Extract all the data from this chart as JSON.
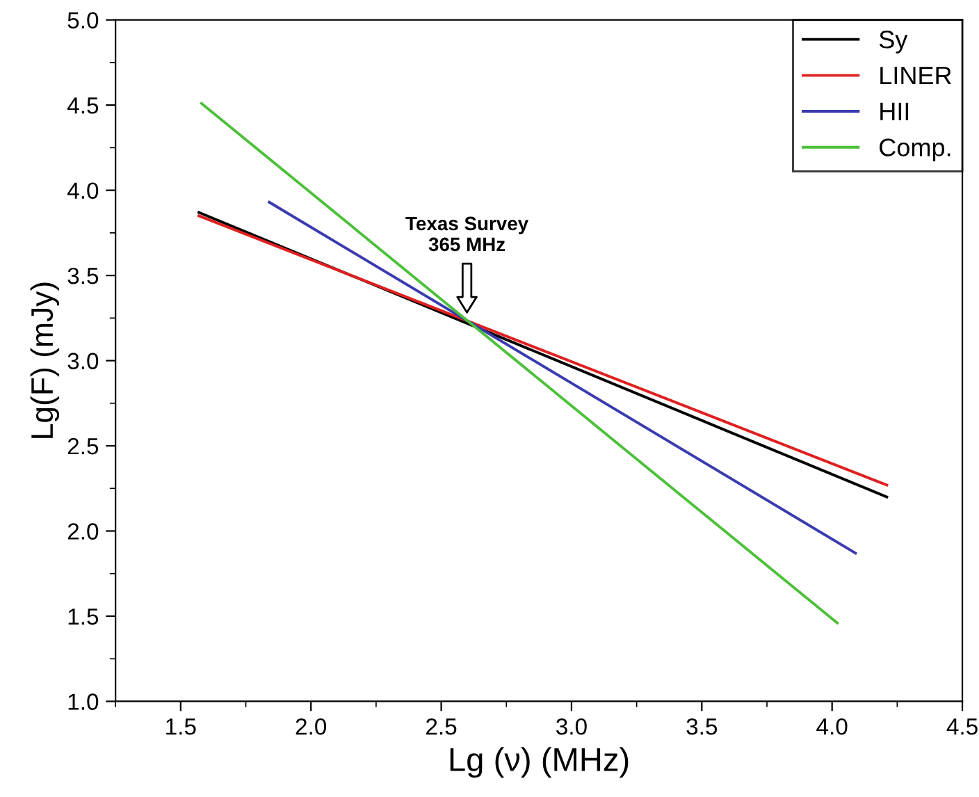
{
  "chart_data": {
    "type": "line",
    "xlabel": "Lg (ν) (MHz)",
    "ylabel": "Lg(F) (mJy)",
    "xlim": [
      1.25,
      4.5
    ],
    "xticks": [
      1.5,
      {
        "value": 2,
        "label": "2.0"
      },
      2.5,
      {
        "value": 3,
        "label": "3.0"
      },
      3.5,
      {
        "value": 4,
        "label": "4.0"
      },
      4.5
    ],
    "ylim": [
      1.0,
      5.0
    ],
    "yticks": [
      {
        "value": 1,
        "label": "1.0"
      },
      1.5,
      {
        "value": 2,
        "label": "2.0"
      },
      2.5,
      {
        "value": 3,
        "label": "3.0"
      },
      3.5,
      {
        "value": 4,
        "label": "4.0"
      },
      4.5,
      {
        "value": 5,
        "label": "5.0"
      }
    ],
    "grid": false,
    "legend": "top right",
    "marker": "none",
    "line_style": "solid",
    "series": [
      {
        "name": "Sy",
        "color": "#000000",
        "x": [
          1.57,
          4.21
        ],
        "values": [
          3.87,
          2.2
        ]
      },
      {
        "name": "LINER",
        "color": "#e02020",
        "x": [
          1.57,
          4.21
        ],
        "values": [
          3.85,
          2.27
        ]
      },
      {
        "name": "HII",
        "color": "#3a3ab0",
        "x": [
          1.84,
          4.09
        ],
        "values": [
          3.93,
          1.87
        ]
      },
      {
        "name": "Comp.",
        "color": "#4cc03a",
        "x": [
          1.58,
          4.02
        ],
        "values": [
          4.51,
          1.46
        ]
      }
    ],
    "annotations": [
      "Texas Survey\n365 MHz"
    ]
  }
}
